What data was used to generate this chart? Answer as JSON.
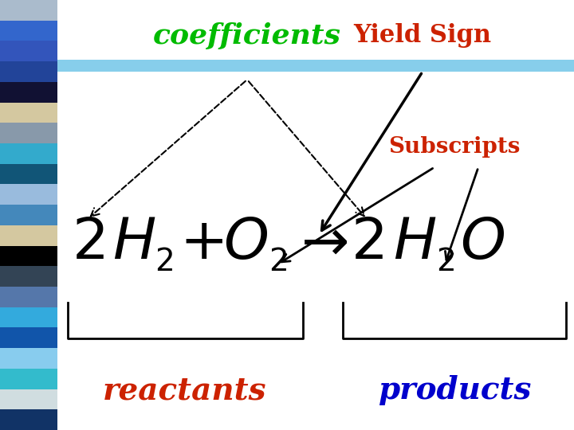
{
  "bg_color": "#ffffff",
  "title": "coefficients",
  "title_color": "#00BB00",
  "yield_sign_label": "Yield Sign",
  "yield_sign_color": "#CC2200",
  "subscripts_label": "Subscripts",
  "subscripts_color": "#CC2200",
  "reactants_label": "reactants",
  "reactants_color": "#CC2200",
  "products_label": "products",
  "products_color": "#0000CC",
  "blue_bar_color": "#87CEEB",
  "sidebar_colors": [
    "#aabbcc",
    "#3366cc",
    "#3355bb",
    "#224499",
    "#111133",
    "#d4c8a0",
    "#8899aa",
    "#33aacc",
    "#115577",
    "#99bbdd",
    "#4488bb",
    "#d4c8a0",
    "#000000",
    "#334455",
    "#5577aa",
    "#33aadd",
    "#1155aa",
    "#88ccee",
    "#33bbcc",
    "#d0dde0",
    "#113366"
  ],
  "figsize": [
    7.2,
    5.4
  ],
  "dpi": 100
}
